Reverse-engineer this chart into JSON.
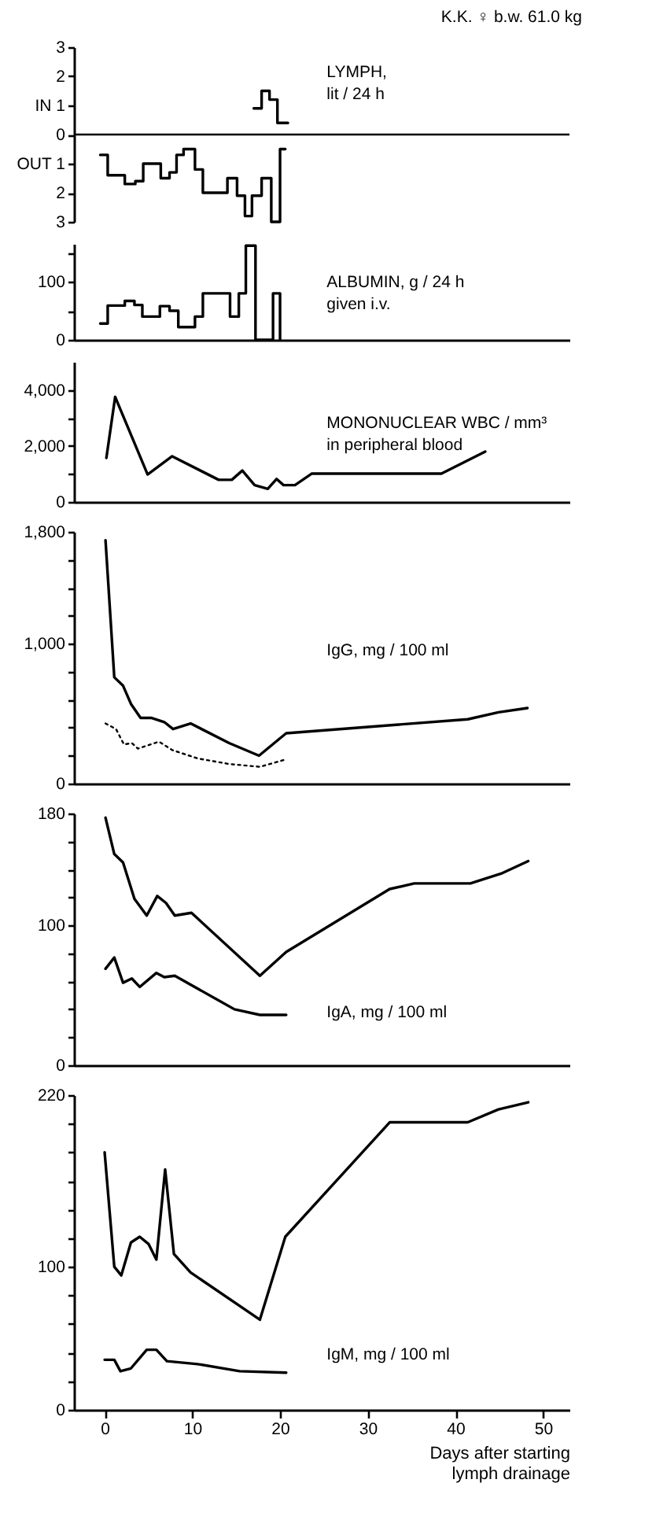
{
  "chart_data": [
    {
      "type": "step",
      "title": "LYMPH,",
      "subtitle": "lit / 24 h",
      "annotations": [
        "K.K. ♀ b.w. 61.0 kg"
      ],
      "xlim": [
        -3.5,
        53
      ],
      "ylim": [
        -3,
        3
      ],
      "yticks": [
        3,
        2,
        {
          "value": 1,
          "label": "IN 1"
        },
        0,
        {
          "value": -1,
          "label": "OUT 1"
        },
        {
          "value": -2,
          "label": "2"
        },
        {
          "value": -3,
          "label": "3"
        }
      ],
      "tick_labels": "y",
      "ref_lines": [
        {
          "axis": "y",
          "value": 0,
          "label": null,
          "color": "#000000"
        }
      ],
      "series": [
        {
          "color": "#000000",
          "x": [
            -0.5,
            0.35,
            2.3,
            3.5,
            4.4,
            6.4,
            7.4,
            8.2,
            9.0,
            10.3,
            11.2,
            14.0,
            15.1,
            16.0,
            16.8,
            17.9,
            19.0,
            20.0,
            20.6
          ],
          "values": [
            -0.7,
            -1.4,
            -1.7,
            -1.6,
            -1.0,
            -1.5,
            -1.3,
            -0.7,
            -0.5,
            -1.2,
            -2.0,
            -1.5,
            -2.1,
            -2.8,
            -2.1,
            -1.5,
            -3.0,
            -0.5,
            -0.5
          ]
        },
        {
          "color": "#000000",
          "x": [
            17.0,
            17.9,
            18.8,
            19.7,
            20.9
          ],
          "values": [
            0.9,
            1.5,
            1.2,
            0.4,
            0.4
          ]
        }
      ]
    },
    {
      "type": "step",
      "title": "ALBUMIN, g / 24 h",
      "subtitle": "given i.v.",
      "xlim": [
        -3.5,
        53
      ],
      "ylim": [
        0,
        165
      ],
      "yticks": [
        0,
        {
          "value": 50,
          "label": null
        },
        100,
        {
          "value": 150,
          "label": null
        }
      ],
      "tick_labels": "y",
      "series": [
        {
          "color": "#000000",
          "x": [
            -0.5,
            0.35,
            2.3,
            3.4,
            4.3,
            6.3,
            7.4,
            8.4,
            10.3,
            11.2,
            14.3,
            15.3,
            16.1,
            17.2,
            19.2,
            20.0
          ],
          "values": [
            28,
            59,
            67,
            60,
            40,
            58,
            50,
            22,
            40,
            80,
            40,
            80,
            162,
            0,
            80,
            0
          ]
        }
      ]
    },
    {
      "type": "line",
      "title": "MONONUCLEAR WBC / mm³",
      "subtitle": "in peripheral blood",
      "xlim": [
        -3.5,
        53
      ],
      "ylim": [
        0,
        5000
      ],
      "yticks": [
        0,
        {
          "value": 1000,
          "label": null
        },
        {
          "value": 2000,
          "label": "2,000"
        },
        {
          "value": 3000,
          "label": null
        },
        {
          "value": 4000,
          "label": "4,000"
        }
      ],
      "tick_labels": "y",
      "series": [
        {
          "color": "#000000",
          "x": [
            0.2,
            1.2,
            4.9,
            7.7,
            13.0,
            14.5,
            15.7,
            17.1,
            18.6,
            19.6,
            20.4,
            21.7,
            23.6,
            38.4,
            43.4
          ],
          "values": [
            1570,
            3750,
            980,
            1630,
            790,
            790,
            1120,
            600,
            470,
            820,
            600,
            600,
            1010,
            1010,
            1800
          ]
        }
      ]
    },
    {
      "type": "line",
      "title": "IgG, mg / 100 ml",
      "xlim": [
        -3.5,
        53
      ],
      "ylim": [
        0,
        1800
      ],
      "yticks": [
        0,
        {
          "value": 200,
          "label": null
        },
        {
          "value": 400,
          "label": null
        },
        {
          "value": 600,
          "label": null
        },
        {
          "value": 800,
          "label": null
        },
        {
          "value": 1000,
          "label": "1,000"
        },
        {
          "value": 1200,
          "label": null
        },
        {
          "value": 1400,
          "label": null
        },
        {
          "value": 1600,
          "label": null
        },
        {
          "value": 1800,
          "label": "1,800"
        }
      ],
      "tick_labels": "y",
      "series": [
        {
          "color": "#000000",
          "x": [
            0.1,
            1.1,
            2.1,
            3.0,
            4.1,
            5.3,
            6.8,
            7.8,
            9.8,
            14.2,
            17.6,
            20.7,
            41.4,
            44.9,
            48.2
          ],
          "values": [
            1740,
            760,
            700,
            570,
            470,
            470,
            440,
            390,
            430,
            290,
            200,
            360,
            460,
            510,
            540
          ]
        },
        {
          "color": "#000000",
          "line_style": "dotted",
          "x": [
            0.1,
            1.3,
            2.2,
            3.1,
            3.8,
            6.2,
            7.7,
            10.6,
            14.2,
            17.7,
            20.5
          ],
          "values": [
            430,
            390,
            280,
            290,
            250,
            300,
            240,
            180,
            140,
            120,
            170
          ]
        }
      ]
    },
    {
      "type": "line",
      "title": "IgA,  mg / 100 ml",
      "xlim": [
        -3.5,
        53
      ],
      "ylim": [
        0,
        180
      ],
      "yticks": [
        0,
        {
          "value": 20,
          "label": null
        },
        {
          "value": 40,
          "label": null
        },
        {
          "value": 60,
          "label": null
        },
        {
          "value": 80,
          "label": null
        },
        100,
        {
          "value": 120,
          "label": null
        },
        {
          "value": 140,
          "label": null
        },
        {
          "value": 160,
          "label": null
        },
        180
      ],
      "tick_labels": "y",
      "series": [
        {
          "color": "#000000",
          "x": [
            0.1,
            1.1,
            2.1,
            3.4,
            4.8,
            6.0,
            7.0,
            8.0,
            9.9,
            17.7,
            20.7,
            32.5,
            35.3,
            41.7,
            45.2,
            48.3
          ],
          "values": [
            177,
            151,
            145,
            119,
            107,
            121,
            116,
            107,
            109,
            64,
            81,
            126,
            130,
            130,
            137,
            146
          ]
        },
        {
          "color": "#000000",
          "x": [
            0.1,
            1.1,
            2.1,
            3.1,
            4.0,
            5.9,
            6.8,
            8.0,
            14.8,
            17.7,
            20.7
          ],
          "values": [
            69,
            77,
            59,
            62,
            56,
            66,
            63,
            64,
            40,
            36,
            36
          ]
        }
      ]
    },
    {
      "type": "line",
      "title": "IgM, mg / 100 ml",
      "xlabel": "Days after starting lymph drainage",
      "xlim": [
        -3.5,
        53
      ],
      "xticks": [
        0,
        10,
        20,
        30,
        40,
        50
      ],
      "ylim": [
        0,
        220
      ],
      "yticks": [
        0,
        {
          "value": 20,
          "label": null
        },
        {
          "value": 40,
          "label": null
        },
        {
          "value": 60,
          "label": null
        },
        {
          "value": 80,
          "label": null
        },
        100,
        {
          "value": 120,
          "label": null
        },
        {
          "value": 140,
          "label": null
        },
        {
          "value": 160,
          "label": null
        },
        {
          "value": 180,
          "label": null
        },
        {
          "value": 200,
          "label": null
        },
        220
      ],
      "series": [
        {
          "color": "#000000",
          "x": [
            0,
            1.1,
            1.9,
            3.0,
            4.0,
            5.0,
            5.9,
            6.9,
            7.9,
            9.8,
            17.7,
            20.6,
            32.5,
            41.4,
            44.9,
            48.3
          ],
          "values": [
            180,
            100,
            94,
            117,
            121,
            116,
            105,
            168,
            109,
            96,
            63,
            121,
            201,
            201,
            210,
            215
          ]
        },
        {
          "color": "#000000",
          "x": [
            0,
            1.1,
            1.8,
            3.0,
            4.8,
            5.9,
            7.1,
            10.6,
            15.4,
            20.7
          ],
          "values": [
            35,
            35,
            27,
            29,
            42,
            42,
            34,
            32,
            27,
            26
          ]
        }
      ]
    }
  ]
}
